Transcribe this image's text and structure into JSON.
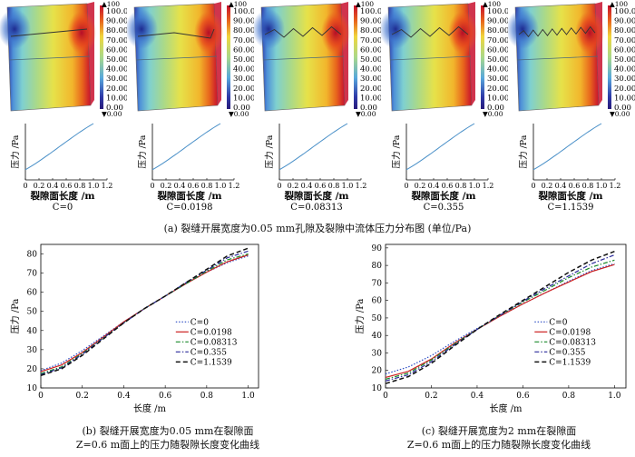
{
  "colorbar": {
    "top_label": "100",
    "ticks": [
      "100.00",
      "90.00",
      "80.00",
      "70.00",
      "60.00",
      "50.00",
      "40.00",
      "30.00",
      "20.00",
      "10.00",
      "0.00"
    ],
    "bottom_label": "0.00",
    "colors": [
      "#c8102e",
      "#e8651c",
      "#f3a52a",
      "#f0d63c",
      "#d9e26a",
      "#a9d98a",
      "#7fcfc4",
      "#57a8dc",
      "#3a6fcc",
      "#2e3aa8",
      "#281a7a"
    ]
  },
  "panels": [
    {
      "c_label": "C=0",
      "crack": "straight"
    },
    {
      "c_label": "C=0.0198",
      "crack": "slight"
    },
    {
      "c_label": "C=0.08313",
      "crack": "zigzag"
    },
    {
      "c_label": "C=0.355",
      "crack": "zigzag"
    },
    {
      "c_label": "C=1.1539",
      "crack": "dense"
    }
  ],
  "small_chart": {
    "ylabel": "压力 /Pa",
    "xlabel": "裂隙面长度 /m",
    "xticks": [
      "0",
      "0.2",
      "0.4",
      "0.6",
      "0.8",
      "1.0",
      "1.2"
    ]
  },
  "caption_a": "(a) 裂缝开展宽度为0.05 mm孔隙及裂隙中流体压力分布图 (单位/Pa)",
  "caption_b_line1": "(b) 裂缝开展宽度为0.05 mm在裂隙面",
  "caption_b_line2": "Z=0.6 m面上的压力随裂隙长度变化曲线",
  "caption_c_line1": "(c) 裂缝开展宽度为2 mm在裂隙面",
  "caption_c_line2": "Z=0.6 m面上的压力随裂隙长度变化曲线",
  "chart_data": [
    {
      "type": "line",
      "title": "",
      "xlabel": "长度 /m",
      "ylabel": "压力 /Pa",
      "xlim": [
        0,
        1.05
      ],
      "ylim": [
        10,
        85
      ],
      "xticks": [
        "0",
        "0.2",
        "0.4",
        "0.6",
        "0.8",
        "1.0"
      ],
      "yticks": [
        "10",
        "20",
        "30",
        "40",
        "50",
        "60",
        "70",
        "80"
      ],
      "legend": "right",
      "series": [
        {
          "name": "C=0",
          "style": "dotted",
          "color": "#2b4cc4",
          "x": [
            0,
            0.1,
            0.2,
            0.3,
            0.4,
            0.5,
            0.6,
            0.7,
            0.8,
            0.9,
            1.0
          ],
          "y": [
            19,
            23,
            29.5,
            37,
            44.5,
            51.5,
            58,
            64.5,
            70.5,
            75.5,
            79
          ]
        },
        {
          "name": "C=0.0198",
          "style": "solid",
          "color": "#cc2020",
          "x": [
            0,
            0.1,
            0.2,
            0.3,
            0.4,
            0.5,
            0.6,
            0.7,
            0.8,
            0.9,
            1.0
          ],
          "y": [
            18.5,
            22,
            28.5,
            36.5,
            44.5,
            51.5,
            58,
            64.5,
            70.5,
            76,
            79.5
          ]
        },
        {
          "name": "C=0.08313",
          "style": "dashdot",
          "color": "#1a8a2a",
          "x": [
            0,
            0.1,
            0.2,
            0.3,
            0.4,
            0.5,
            0.6,
            0.7,
            0.8,
            0.9,
            1.0
          ],
          "y": [
            17.5,
            21,
            28,
            36,
            44,
            51.5,
            58,
            64.5,
            71,
            77,
            80
          ]
        },
        {
          "name": "C=0.355",
          "style": "dashdot",
          "color": "#2a2a9a",
          "x": [
            0,
            0.1,
            0.2,
            0.3,
            0.4,
            0.5,
            0.6,
            0.7,
            0.8,
            0.9,
            1.0
          ],
          "y": [
            17,
            20.5,
            27.5,
            36,
            44,
            51.5,
            58,
            65,
            71.5,
            78,
            81.5
          ]
        },
        {
          "name": "C=1.1539",
          "style": "dashed",
          "color": "#111111",
          "x": [
            0,
            0.1,
            0.2,
            0.3,
            0.4,
            0.5,
            0.6,
            0.7,
            0.8,
            0.9,
            1.0
          ],
          "y": [
            16.5,
            20,
            27,
            35.5,
            44,
            51.5,
            58,
            65,
            72,
            79,
            83
          ]
        }
      ]
    },
    {
      "type": "line",
      "title": "",
      "xlabel": "长度 /m",
      "ylabel": "压力 /Pa",
      "xlim": [
        0,
        1.05
      ],
      "ylim": [
        10,
        92
      ],
      "xticks": [
        "0",
        "0.2",
        "0.4",
        "0.6",
        "0.8",
        "1.0"
      ],
      "yticks": [
        "10",
        "20",
        "30",
        "40",
        "50",
        "60",
        "70",
        "80",
        "90"
      ],
      "legend": "right",
      "series": [
        {
          "name": "C=0",
          "style": "dotted",
          "color": "#2b4cc4",
          "x": [
            0,
            0.1,
            0.2,
            0.3,
            0.4,
            0.5,
            0.6,
            0.7,
            0.8,
            0.9,
            1.0
          ],
          "y": [
            18,
            22,
            28.5,
            36.5,
            44,
            51,
            58,
            64.5,
            71,
            77,
            81
          ]
        },
        {
          "name": "C=0.0198",
          "style": "solid",
          "color": "#cc2020",
          "x": [
            0,
            0.1,
            0.2,
            0.3,
            0.4,
            0.5,
            0.6,
            0.7,
            0.8,
            0.9,
            1.0
          ],
          "y": [
            16,
            19.5,
            26.5,
            35.5,
            43.5,
            51,
            58,
            64.5,
            70.5,
            76.5,
            80.5
          ]
        },
        {
          "name": "C=0.08313",
          "style": "dashdot",
          "color": "#1a8a2a",
          "x": [
            0,
            0.1,
            0.2,
            0.3,
            0.4,
            0.5,
            0.6,
            0.7,
            0.8,
            0.9,
            1.0
          ],
          "y": [
            15,
            18.5,
            26,
            35,
            43.5,
            51.5,
            59,
            66,
            73,
            79,
            83
          ]
        },
        {
          "name": "C=0.355",
          "style": "dashdot",
          "color": "#2a2a9a",
          "x": [
            0,
            0.1,
            0.2,
            0.3,
            0.4,
            0.5,
            0.6,
            0.7,
            0.8,
            0.9,
            1.0
          ],
          "y": [
            14,
            17.5,
            25,
            34.5,
            43.5,
            51.5,
            59.5,
            67,
            74,
            81,
            86
          ]
        },
        {
          "name": "C=1.1539",
          "style": "dashed",
          "color": "#111111",
          "x": [
            0,
            0.1,
            0.2,
            0.3,
            0.4,
            0.5,
            0.6,
            0.7,
            0.8,
            0.9,
            1.0
          ],
          "y": [
            12.5,
            16.5,
            24,
            34,
            43.5,
            52,
            60,
            68,
            76,
            83,
            88
          ]
        }
      ]
    }
  ]
}
